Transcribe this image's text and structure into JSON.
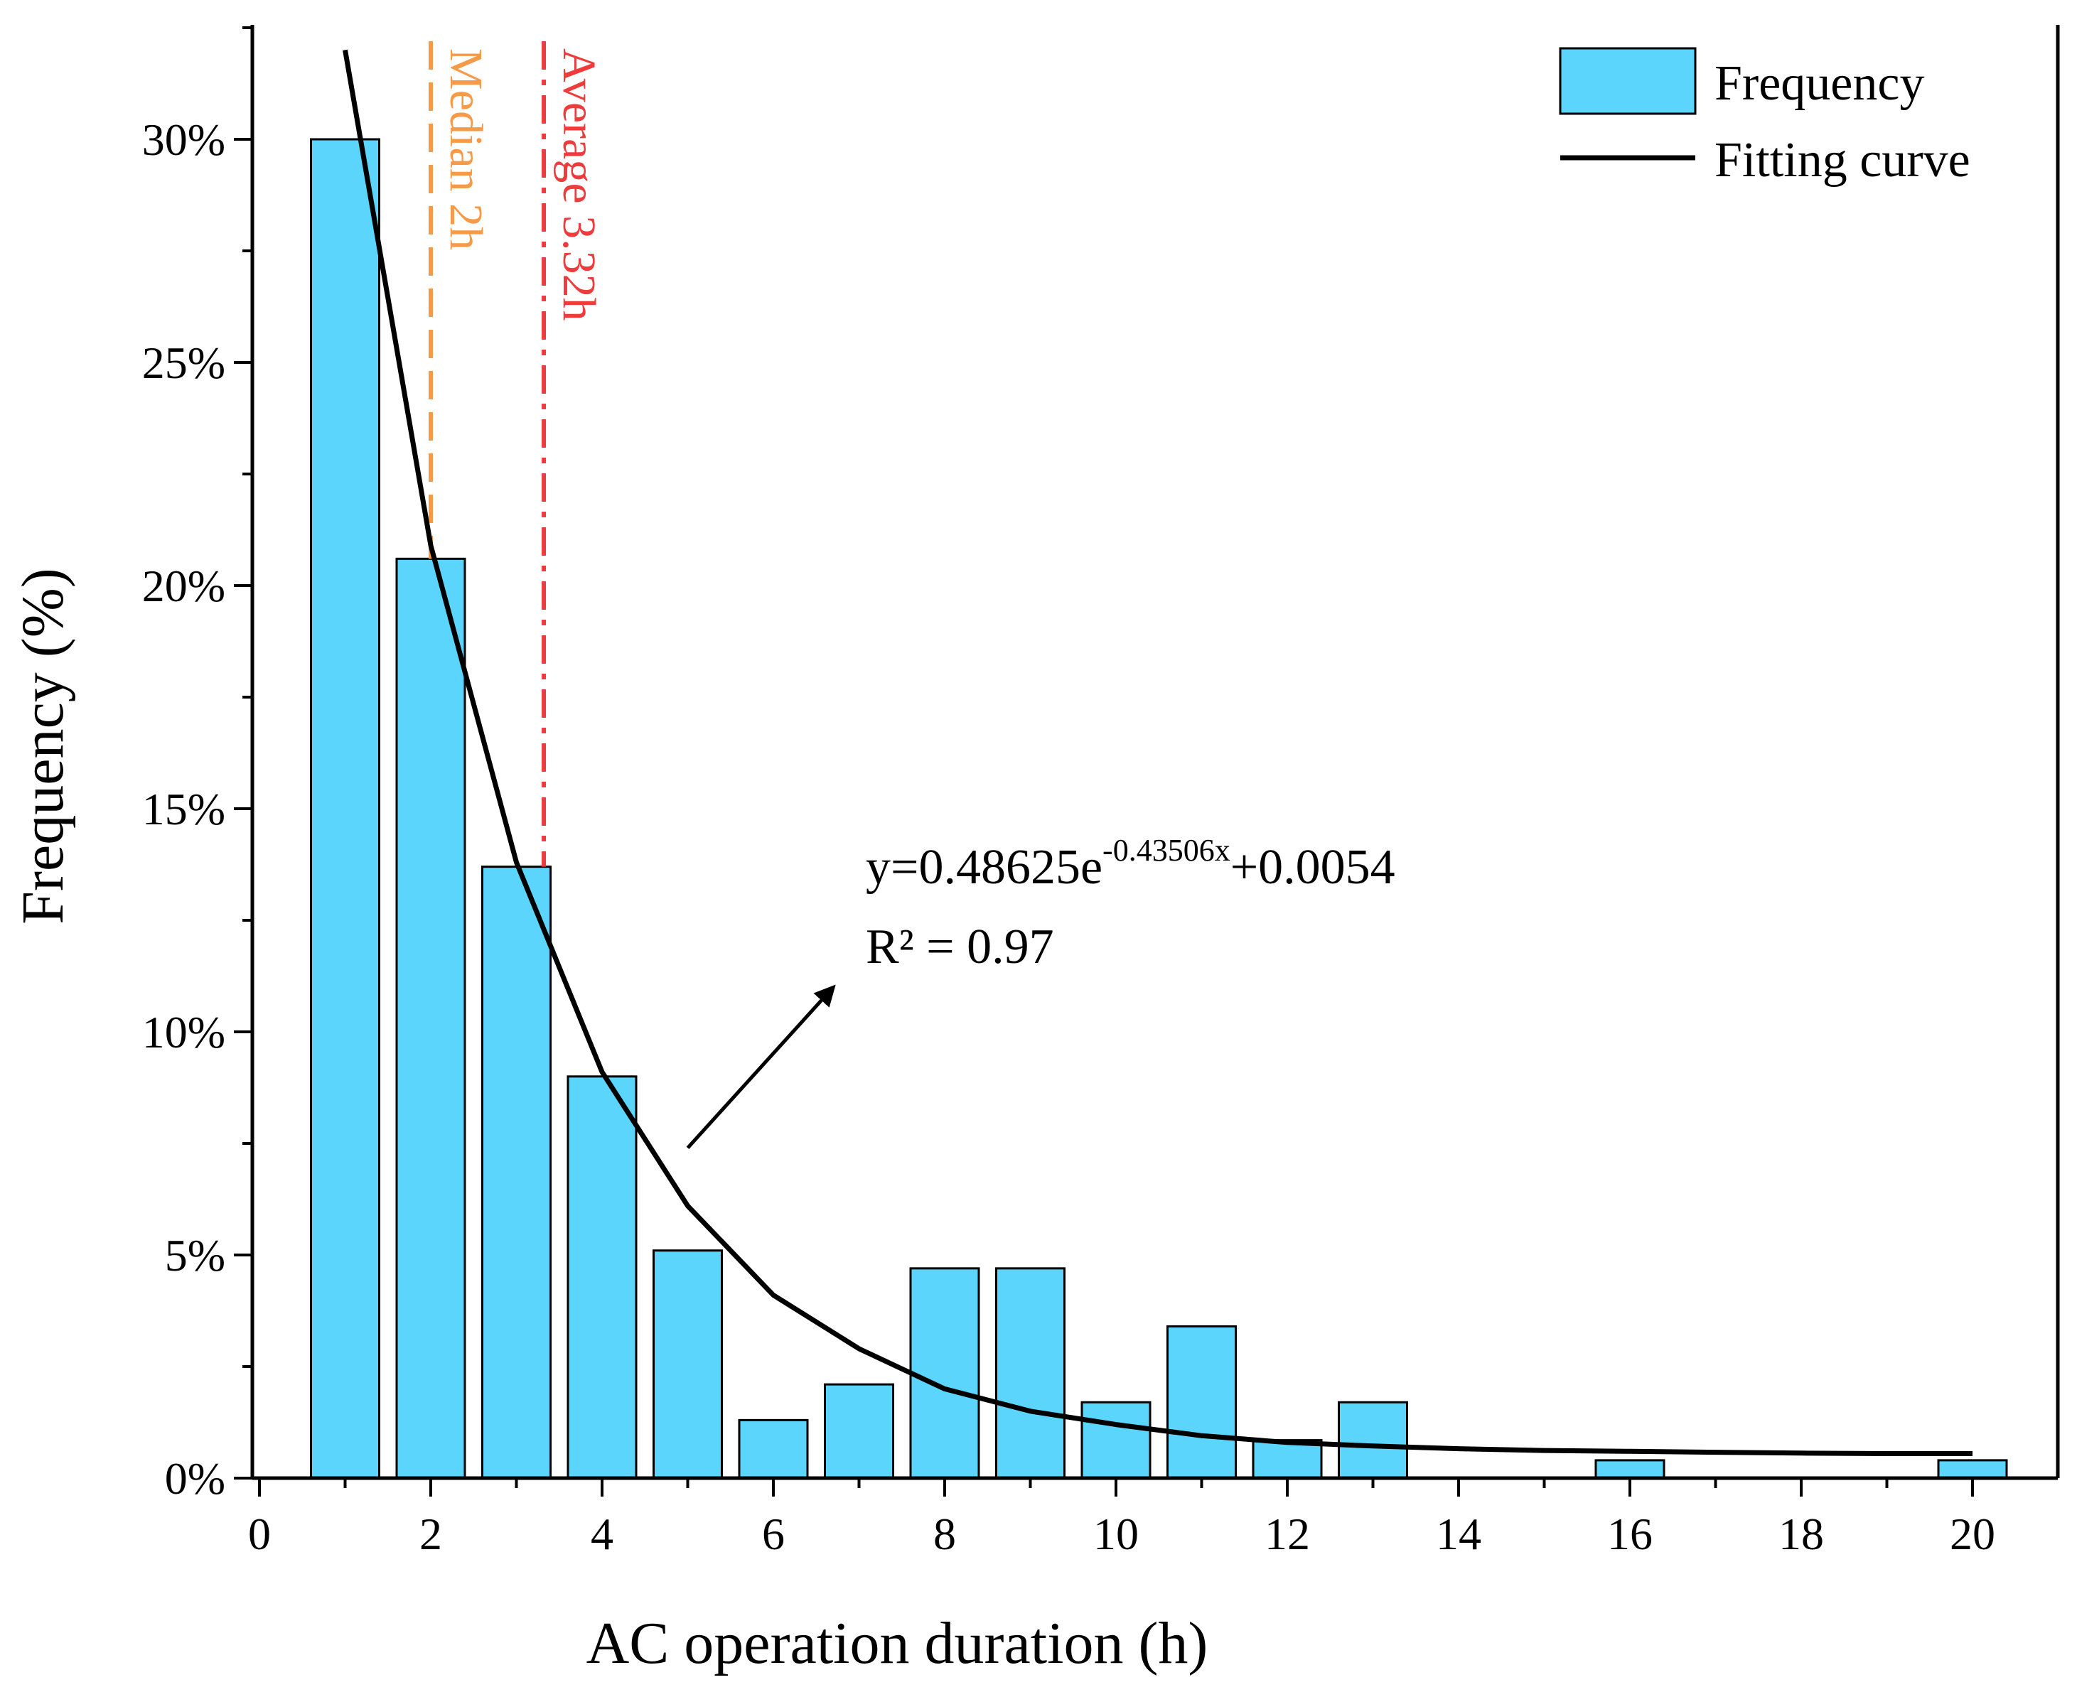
{
  "chart_data": {
    "type": "bar",
    "xlabel": "AC operation duration (h)",
    "ylabel": "Frequency (%)",
    "xlim": [
      0,
      20.5
    ],
    "ylim": [
      0,
      32.5
    ],
    "x_major_ticks": [
      0,
      2,
      4,
      6,
      8,
      10,
      12,
      14,
      16,
      18,
      20
    ],
    "x_tick_labels": [
      "0",
      "2",
      "4",
      "6",
      "8",
      "10",
      "12",
      "14",
      "16",
      "18",
      "20"
    ],
    "y_major_ticks": [
      0,
      5,
      10,
      15,
      20,
      25,
      30
    ],
    "y_tick_labels": [
      "0%",
      "5%",
      "10%",
      "15%",
      "20%",
      "25%",
      "30%"
    ],
    "grid": false,
    "series": [
      {
        "name": "Frequency",
        "type": "bar",
        "color": "#5bd5fb",
        "x": [
          1,
          2,
          3,
          4,
          5,
          6,
          7,
          8,
          9,
          10,
          11,
          12,
          13,
          14,
          15,
          16,
          17,
          18,
          19,
          20
        ],
        "values": [
          30.0,
          20.6,
          13.7,
          9.0,
          5.1,
          1.3,
          2.1,
          4.7,
          4.7,
          1.7,
          3.4,
          0.85,
          1.7,
          0,
          0,
          0.4,
          0,
          0,
          0,
          0.4
        ]
      },
      {
        "name": "Fitting curve",
        "type": "line",
        "color": "#000000",
        "x": [
          1,
          2,
          3,
          4,
          5,
          6,
          7,
          8,
          9,
          10,
          11,
          12,
          13,
          14,
          15,
          16,
          17,
          18,
          19,
          20
        ],
        "values": [
          32.0,
          20.9,
          13.8,
          9.1,
          6.1,
          4.1,
          2.9,
          2.0,
          1.5,
          1.2,
          0.95,
          0.8,
          0.72,
          0.66,
          0.62,
          0.6,
          0.58,
          0.56,
          0.55,
          0.55
        ]
      }
    ],
    "reference_lines": [
      {
        "x": 2,
        "label": "Median 2h",
        "color": "#f79a48",
        "style": "dashed"
      },
      {
        "x": 3.32,
        "label": "Average 3.32h",
        "color": "#ee3b3b",
        "style": "dash-dot"
      }
    ],
    "legend": {
      "position": "top-right",
      "items": [
        {
          "label": "Frequency",
          "kind": "bar"
        },
        {
          "label": "Fitting curve",
          "kind": "line"
        }
      ]
    },
    "annotation": {
      "equation_main": "y=0.48625e",
      "equation_exponent": "-0.43506x",
      "equation_tail": "+0.0054",
      "r_squared": "R² = 0.97",
      "arrow_from": [
        5,
        7.4
      ],
      "arrow_to": [
        6.7,
        11
      ]
    }
  }
}
